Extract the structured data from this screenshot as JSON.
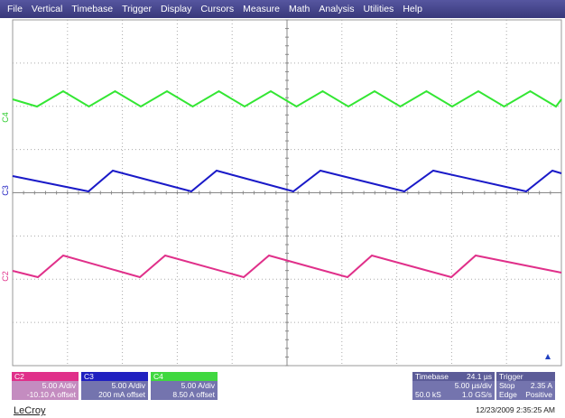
{
  "menu": [
    "File",
    "Vertical",
    "Timebase",
    "Trigger",
    "Display",
    "Cursors",
    "Measure",
    "Math",
    "Analysis",
    "Utilities",
    "Help"
  ],
  "traces": [
    "C4",
    "C3",
    "C2"
  ],
  "channels": [
    {
      "name": "C2",
      "scale": "5.00 A/div",
      "offset": "-10.10 A offset"
    },
    {
      "name": "C3",
      "scale": "5.00 A/div",
      "offset": "200 mA offset"
    },
    {
      "name": "C4",
      "scale": "5.00 A/div",
      "offset": "8.50 A offset"
    }
  ],
  "timebase": {
    "title": "Timebase",
    "delay": "24.1 µs",
    "scale": "5.00 µs/div",
    "samples": "50.0 kS",
    "rate": "1.0 GS/s"
  },
  "trigger": {
    "title": "Trigger",
    "mode": "Stop",
    "level": "2.35 A",
    "type": "Edge",
    "slope": "Positive"
  },
  "footer": {
    "brand": "LeCroy",
    "timestamp": "12/23/2009 2:35:25 AM"
  }
}
